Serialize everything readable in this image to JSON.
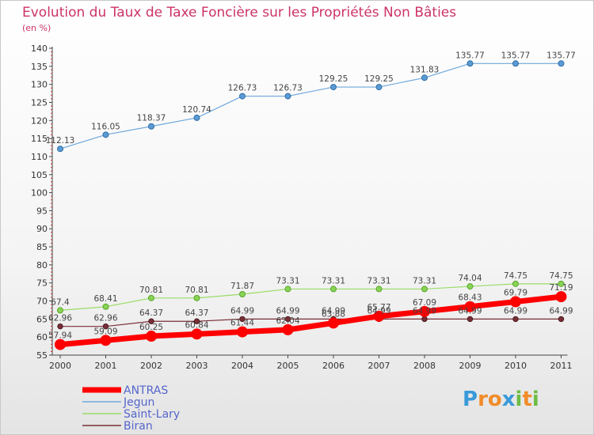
{
  "chart_data": {
    "type": "line",
    "title": "Evolution du Taux de Taxe Foncière sur les Propriétés Non Bâties",
    "ylabel": "(en %)",
    "xlabel": "",
    "x": [
      "2000",
      "2001",
      "2002",
      "2003",
      "2004",
      "2005",
      "2006",
      "2007",
      "2008",
      "2009",
      "2010",
      "2011"
    ],
    "ylim": [
      55,
      140
    ],
    "yticks": [
      55,
      60,
      65,
      70,
      75,
      80,
      85,
      90,
      95,
      100,
      105,
      110,
      115,
      120,
      125,
      130,
      135,
      140
    ],
    "series": [
      {
        "name": "ANTRAS",
        "color": "#ff0000",
        "values": [
          57.94,
          59.09,
          60.25,
          60.84,
          61.44,
          62.04,
          63.88,
          65.77,
          67.09,
          68.43,
          69.79,
          71.19
        ],
        "labels": [
          "57.94",
          "59.09",
          "60.25",
          "60.84",
          "61.44",
          "62.04",
          "63.88",
          "65.77",
          "67.09",
          "68.43",
          "69.79",
          "71.19"
        ]
      },
      {
        "name": "Jegun",
        "color": "#6fa8dc",
        "values": [
          112.13,
          116.05,
          118.37,
          120.74,
          126.73,
          126.73,
          129.25,
          129.25,
          131.83,
          135.77,
          135.77,
          135.77
        ],
        "labels": [
          "112.13",
          "116.05",
          "118.37",
          "120.74",
          "126.73",
          "126.73",
          "129.25",
          "129.25",
          "131.83",
          "135.77",
          "135.77",
          "135.77"
        ]
      },
      {
        "name": "Saint-Lary",
        "color": "#99dd66",
        "values": [
          67.4,
          68.41,
          70.81,
          70.81,
          71.87,
          73.31,
          73.31,
          73.31,
          73.31,
          74.04,
          74.75,
          74.75
        ],
        "labels": [
          "67.4",
          "68.41",
          "70.81",
          "70.81",
          "71.87",
          "73.31",
          "73.31",
          "73.31",
          "73.31",
          "74.04",
          "74.75",
          "74.75"
        ]
      },
      {
        "name": "Biran",
        "color": "#7a2e36",
        "values": [
          62.96,
          62.96,
          64.37,
          64.37,
          64.99,
          64.99,
          64.99,
          64.99,
          64.99,
          64.99,
          64.99,
          64.99
        ],
        "labels": [
          "62.96",
          "62.96",
          "64.37",
          "64.37",
          "64.99",
          "64.99",
          "64.99",
          "64.99",
          "64.99",
          "64.99",
          "64.99",
          "64.99"
        ]
      }
    ],
    "grid": false,
    "legend_position": "bottom-left"
  },
  "logo": {
    "letters": [
      "P",
      "r",
      "o",
      "x",
      "i",
      "t",
      "i"
    ],
    "colors": [
      "#3a9ad9",
      "#f08c2a",
      "#f08c2a",
      "#3a9ad9",
      "#6dbd45",
      "#f08c2a",
      "#6dbd45"
    ]
  }
}
